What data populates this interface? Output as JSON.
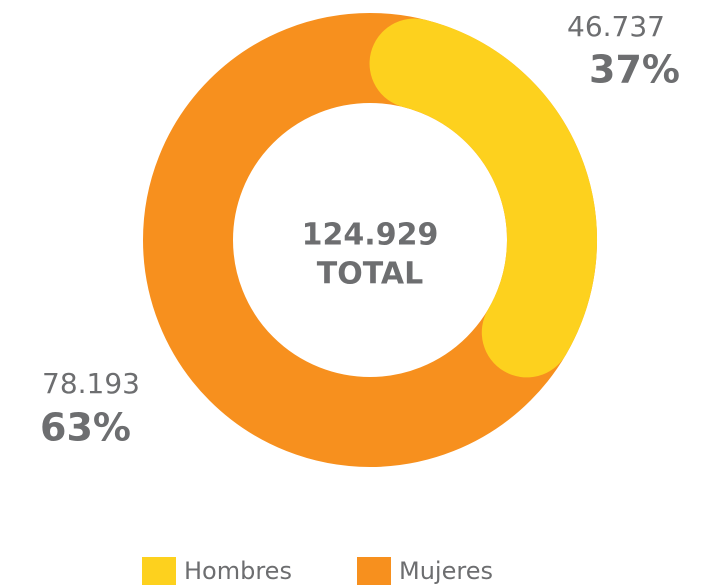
{
  "chart_data": {
    "type": "donut",
    "categories": [
      "Hombres",
      "Mujeres"
    ],
    "values": [
      46737,
      78193
    ],
    "value_labels": [
      "46.737",
      "78.193"
    ],
    "percentages": [
      37,
      63
    ],
    "percentage_labels": [
      "37%",
      "63%"
    ],
    "colors": [
      "#fdd11e",
      "#f7901e"
    ],
    "total": 124929,
    "total_label": "124.929",
    "total_text": "TOTAL",
    "legend": "bottom"
  }
}
